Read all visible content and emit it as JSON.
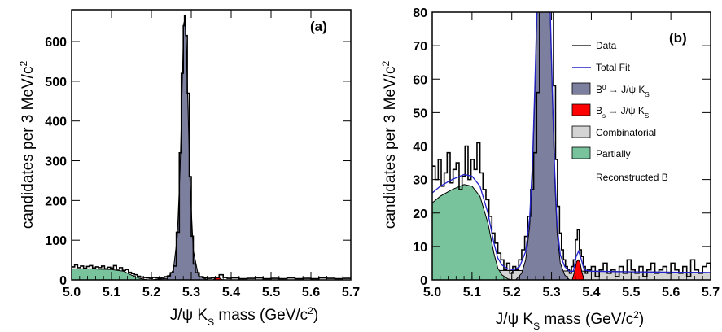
{
  "chart_data": [
    {
      "type": "area",
      "panel_label": "(a)",
      "xlabel": "J/ψ K",
      "xlabel_sub": "S",
      "xlabel_tail": " mass (GeV/c",
      "xlabel_sup": "2",
      "xlabel_end": ")",
      "ylabel": "candidates per 3 MeV/c",
      "ylabel_sup": "2",
      "xlim": [
        5.0,
        5.7
      ],
      "ylim": [
        0,
        680
      ],
      "x_ticks": [
        "5.0",
        "5.1",
        "5.2",
        "5.3",
        "5.4",
        "5.5",
        "5.6",
        "5.7"
      ],
      "y_ticks": [
        0,
        100,
        200,
        300,
        400,
        500,
        600
      ],
      "colors": {
        "signal": "#7d7f9e",
        "bs": "#ff0000",
        "partial": "#78c39b",
        "combinatorial": "#d4d4d4",
        "fit": "#2222cc",
        "data": "#000000"
      },
      "components": {
        "partial": {
          "x": [
            5.0,
            5.05,
            5.1,
            5.13,
            5.15,
            5.17,
            5.19
          ],
          "y": [
            28,
            28,
            26,
            22,
            12,
            4,
            0
          ]
        },
        "signal": {
          "x": [
            5.2,
            5.24,
            5.255,
            5.265,
            5.272,
            5.278,
            5.281,
            5.284,
            5.287,
            5.291,
            5.297,
            5.305,
            5.318,
            5.34
          ],
          "y": [
            0,
            4,
            25,
            110,
            280,
            520,
            645,
            655,
            600,
            460,
            240,
            75,
            10,
            0
          ]
        },
        "bs": {
          "x": [
            5.355,
            5.36,
            5.366,
            5.372,
            5.378
          ],
          "y": [
            0,
            4,
            7,
            4,
            0
          ]
        }
      },
      "data_points": {
        "x": [
          5.0,
          5.0075,
          5.015,
          5.0225,
          5.03,
          5.0375,
          5.045,
          5.0525,
          5.06,
          5.0675,
          5.075,
          5.0825,
          5.09,
          5.0975,
          5.105,
          5.1125,
          5.12,
          5.1275,
          5.135,
          5.1425,
          5.15,
          5.1575,
          5.165,
          5.1725,
          5.18,
          5.1875,
          5.195,
          5.2025,
          5.21,
          5.2175,
          5.225,
          5.2325,
          5.24,
          5.2475,
          5.255,
          5.2625,
          5.27,
          5.275,
          5.28,
          5.283,
          5.286,
          5.29,
          5.295,
          5.3,
          5.305,
          5.31,
          5.32,
          5.33,
          5.34,
          5.35,
          5.36,
          5.37,
          5.38,
          5.39,
          5.4,
          5.42,
          5.44,
          5.46,
          5.48,
          5.5,
          5.52,
          5.54,
          5.56,
          5.58,
          5.6,
          5.62,
          5.64,
          5.66,
          5.68,
          5.7
        ],
        "y": [
          33,
          38,
          31,
          35,
          29,
          34,
          36,
          30,
          33,
          31,
          35,
          28,
          32,
          30,
          36,
          27,
          31,
          24,
          26,
          19,
          16,
          13,
          9,
          7,
          6,
          5,
          4,
          6,
          5,
          4,
          6,
          8,
          10,
          18,
          35,
          120,
          320,
          520,
          640,
          664,
          615,
          470,
          260,
          110,
          40,
          18,
          8,
          5,
          4,
          5,
          6,
          13,
          6,
          4,
          5,
          3,
          4,
          5,
          3,
          4,
          3,
          5,
          3,
          4,
          3,
          5,
          4,
          3,
          4,
          3
        ]
      }
    },
    {
      "type": "area",
      "panel_label": "(b)",
      "xlabel": "J/ψ K",
      "xlabel_sub": "S",
      "xlabel_tail": " mass (GeV/c",
      "xlabel_sup": "2",
      "xlabel_end": ")",
      "ylabel": "candidates per 3 MeV/c",
      "ylabel_sup": "2",
      "xlim": [
        5.0,
        5.7
      ],
      "ylim": [
        0,
        80
      ],
      "x_ticks": [
        "5.0",
        "5.1",
        "5.2",
        "5.3",
        "5.4",
        "5.5",
        "5.6",
        "5.7"
      ],
      "y_ticks": [
        0,
        10,
        20,
        30,
        40,
        50,
        60,
        70,
        80
      ],
      "legend": [
        {
          "key": "data",
          "label": "Data"
        },
        {
          "key": "fit",
          "label": "Total Fit"
        },
        {
          "key": "signal",
          "label": "B",
          "sup": "0",
          "tail": " → J/ψ K",
          "sub": "S"
        },
        {
          "key": "bs",
          "label": "B",
          "sub0": "s",
          "tail": " → J/ψ K",
          "sub": "S"
        },
        {
          "key": "combinatorial",
          "label": "Combinatorial"
        },
        {
          "key": "partial",
          "label": "Partially",
          "line2": "Reconstructed B"
        }
      ],
      "colors": {
        "signal": "#7d7f9e",
        "bs": "#ff0000",
        "partial": "#78c39b",
        "combinatorial": "#d4d4d4",
        "fit": "#2222cc",
        "data": "#000000"
      },
      "components": {
        "combinatorial": {
          "x": [
            5.0,
            5.2,
            5.4,
            5.7
          ],
          "y": [
            3.0,
            2.8,
            2.6,
            2.2
          ]
        },
        "partial": {
          "x": [
            5.0,
            5.02,
            5.05,
            5.08,
            5.1,
            5.12,
            5.14,
            5.155,
            5.165,
            5.175,
            5.19,
            5.2
          ],
          "y": [
            23,
            25,
            27,
            28.5,
            28,
            25,
            17,
            8,
            3.5,
            1.5,
            0.3,
            0
          ]
        },
        "signal": {
          "x": [
            5.21,
            5.225,
            5.235,
            5.245,
            5.252,
            5.258,
            5.264,
            5.296,
            5.302,
            5.308,
            5.314,
            5.322,
            5.333,
            5.345
          ],
          "y": [
            0,
            2,
            6,
            16,
            32,
            55,
            82,
            82,
            55,
            30,
            14,
            5,
            1.5,
            0
          ]
        },
        "bs": {
          "x": [
            5.352,
            5.358,
            5.363,
            5.368,
            5.372,
            5.376,
            5.382
          ],
          "y": [
            0,
            2.5,
            5.5,
            6,
            5,
            2.5,
            0
          ]
        },
        "fit": {
          "x": [
            5.0,
            5.02,
            5.05,
            5.08,
            5.1,
            5.12,
            5.14,
            5.155,
            5.165,
            5.175,
            5.19,
            5.205,
            5.22,
            5.235,
            5.245,
            5.252,
            5.258,
            5.264,
            5.296,
            5.302,
            5.308,
            5.314,
            5.322,
            5.333,
            5.345,
            5.355,
            5.362,
            5.368,
            5.374,
            5.382,
            5.4,
            5.5,
            5.6,
            5.7
          ],
          "y": [
            26,
            28,
            30,
            31.5,
            31,
            28,
            20,
            11,
            6.5,
            4.5,
            3.3,
            3.0,
            4,
            8.5,
            18.5,
            35,
            58,
            84,
            84,
            57,
            32.5,
            16.5,
            7.5,
            4,
            2.6,
            2.6,
            7,
            8.6,
            6.5,
            3,
            2.6,
            2.4,
            2.3,
            2.2
          ]
        }
      },
      "data_points": {
        "x": [
          5.0,
          5.0075,
          5.015,
          5.0225,
          5.03,
          5.0375,
          5.045,
          5.0525,
          5.06,
          5.0675,
          5.075,
          5.0825,
          5.09,
          5.0975,
          5.105,
          5.1125,
          5.12,
          5.1275,
          5.135,
          5.1425,
          5.15,
          5.1575,
          5.165,
          5.1725,
          5.18,
          5.1875,
          5.195,
          5.2025,
          5.21,
          5.2175,
          5.225,
          5.2325,
          5.24,
          5.2475,
          5.255,
          5.2625,
          5.27,
          5.3,
          5.305,
          5.31,
          5.315,
          5.32,
          5.325,
          5.33,
          5.335,
          5.34,
          5.345,
          5.35,
          5.355,
          5.36,
          5.365,
          5.37,
          5.375,
          5.38,
          5.385,
          5.39,
          5.4,
          5.41,
          5.42,
          5.43,
          5.44,
          5.45,
          5.46,
          5.47,
          5.48,
          5.49,
          5.5,
          5.51,
          5.52,
          5.53,
          5.54,
          5.55,
          5.56,
          5.57,
          5.58,
          5.59,
          5.6,
          5.61,
          5.62,
          5.63,
          5.64,
          5.65,
          5.66,
          5.67,
          5.68,
          5.69,
          5.7
        ],
        "y": [
          34,
          30,
          36,
          28,
          32,
          38,
          29,
          33,
          35,
          27,
          31,
          40,
          30,
          36,
          33,
          41,
          32,
          27,
          24,
          19,
          14,
          11,
          8,
          6,
          3,
          5,
          2,
          4,
          3,
          6,
          9,
          13,
          19,
          27,
          38,
          56,
          82,
          82,
          58,
          36,
          22,
          14,
          9,
          6,
          4,
          3,
          2,
          4,
          6,
          12,
          15,
          9,
          7,
          4,
          2,
          3,
          4,
          1,
          3,
          5,
          2,
          3,
          1,
          4,
          2,
          6,
          3,
          2,
          4,
          1,
          3,
          5,
          2,
          3,
          4,
          2,
          5,
          3,
          2,
          4,
          1,
          6,
          3,
          2,
          4,
          5,
          3
        ]
      }
    }
  ]
}
